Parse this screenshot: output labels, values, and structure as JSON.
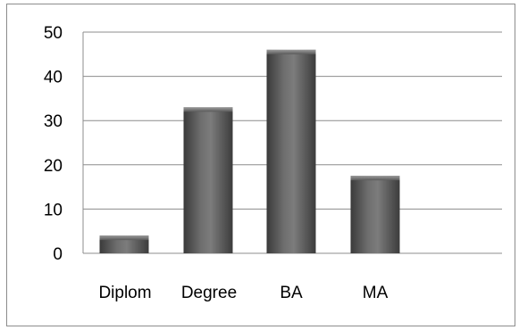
{
  "chart_data": {
    "type": "bar",
    "categories": [
      "Diplom",
      "Degree",
      "BA",
      "MA"
    ],
    "values": [
      4,
      33,
      46,
      17.5
    ],
    "title": "",
    "xlabel": "",
    "ylabel": "",
    "ylim": [
      0,
      50
    ],
    "yticks": [
      "0",
      "10",
      "20",
      "30",
      "40",
      "50"
    ],
    "grid": true,
    "legend": false,
    "colors": {
      "bar_fill_dark": "#4a4a4a",
      "bar_fill_light": "#7a7a7a",
      "bar_top": "#8c8c8c",
      "gridline": "#8c8c8c",
      "axis": "#8c8c8c"
    }
  }
}
